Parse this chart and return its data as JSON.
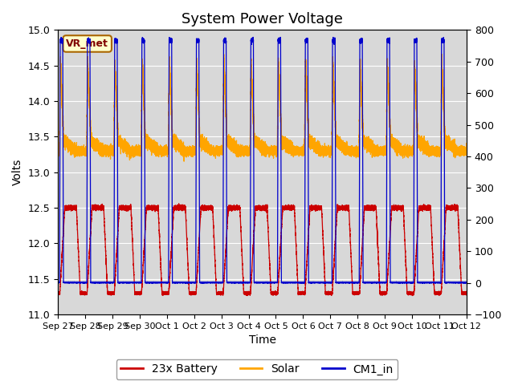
{
  "title": "System Power Voltage",
  "xlabel": "Time",
  "ylabel_left": "Volts",
  "ylim_left": [
    11.0,
    15.0
  ],
  "ylim_right": [
    -100,
    800
  ],
  "yticks_left": [
    11.0,
    11.5,
    12.0,
    12.5,
    13.0,
    13.5,
    14.0,
    14.5,
    15.0
  ],
  "yticks_right": [
    -100,
    0,
    100,
    200,
    300,
    400,
    500,
    600,
    700,
    800
  ],
  "xtick_labels": [
    "Sep 27",
    "Sep 28",
    "Sep 29",
    "Sep 30",
    "Oct 1",
    "Oct 2",
    "Oct 3",
    "Oct 4",
    "Oct 5",
    "Oct 6",
    "Oct 7",
    "Oct 8",
    "Oct 9",
    "Oct 10",
    "Oct 11",
    "Oct 12"
  ],
  "annotation_text": "VR_met",
  "legend_labels": [
    "23x Battery",
    "Solar",
    "CM1_in"
  ],
  "legend_colors": [
    "#cc0000",
    "#ffa500",
    "#0000cc"
  ],
  "bg_color": "#d8d8d8",
  "fig_bg_color": "#ffffff",
  "grid_color": "#ffffff",
  "title_fontsize": 13,
  "axis_fontsize": 10,
  "tick_fontsize": 9,
  "legend_fontsize": 10
}
